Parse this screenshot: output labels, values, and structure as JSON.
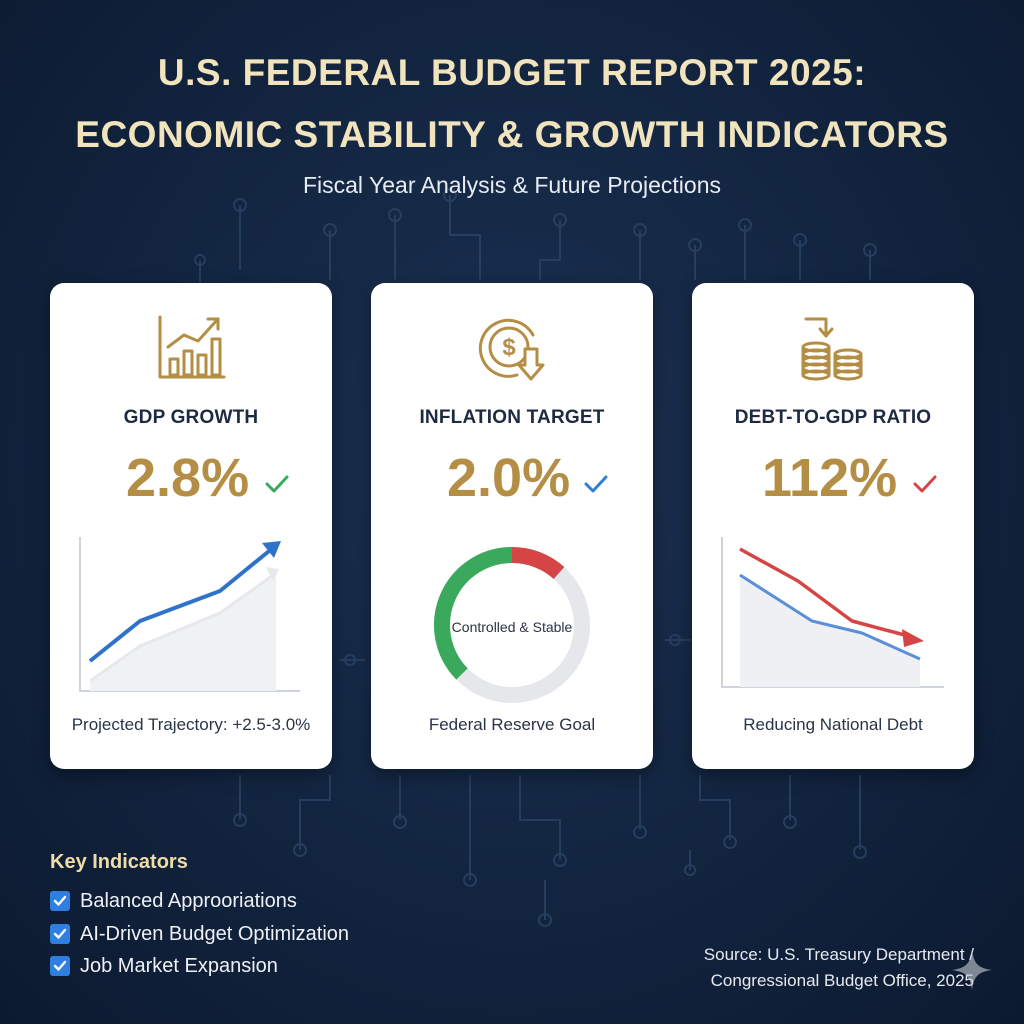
{
  "header": {
    "title_line1": "U.S. FEDERAL BUDGET REPORT 2025:",
    "title_line2": "ECONOMIC STABILITY & GROWTH INDICATORS",
    "subtitle": "Fiscal Year Analysis & Future Projections"
  },
  "cards": [
    {
      "title": "GDP GROWTH",
      "value": "2.8%",
      "caption": "Projected Trajectory: +2.5-3.0%",
      "icon": "bar-chart-growth-icon",
      "status_icon": "check-icon",
      "status_color": "#3aa95b"
    },
    {
      "title": "INFLATION TARGET",
      "value": "2.0%",
      "caption": "Federal Reserve Goal",
      "gauge_label": "Controlled & Stable",
      "icon": "dollar-coin-down-icon",
      "status_icon": "check-icon",
      "status_color": "#2f7fd0"
    },
    {
      "title": "DEBT-TO-GDP RATIO",
      "value": "112%",
      "caption": "Reducing National Debt",
      "icon": "coin-stacks-down-icon",
      "status_icon": "check-icon",
      "status_color": "#d64545"
    }
  ],
  "key_indicators": {
    "title": "Key Indicators",
    "items": [
      "Balanced Approoriations",
      "AI-Driven Budget Optimization",
      "Job Market Expansion"
    ]
  },
  "source": {
    "line1": "Source: U.S. Treasury Department /",
    "line2": "Congressional Budget Office, 2025"
  },
  "colors": {
    "accent_gold": "#b58e46",
    "title_cream": "#f1e4bd",
    "green": "#3aa95b",
    "blue": "#2f7fd0",
    "red": "#d64545"
  }
}
